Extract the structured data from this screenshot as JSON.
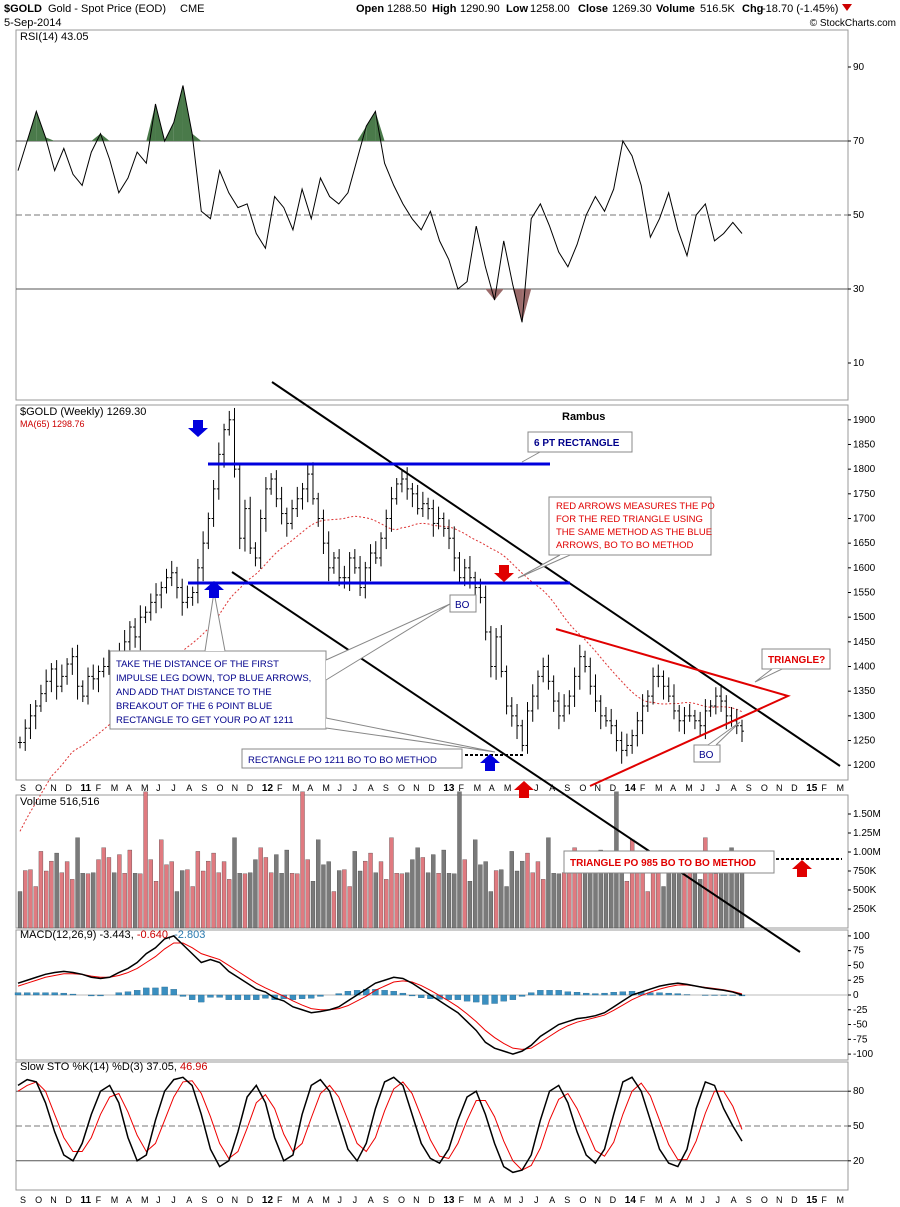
{
  "header": {
    "symbol": "$GOLD",
    "name": "Gold - Spot Price (EOD)",
    "exchange": "CME",
    "date": "5-Sep-2014",
    "open_label": "Open",
    "open": "1288.50",
    "high_label": "High",
    "high": "1290.90",
    "low_label": "Low",
    "low": "1258.00",
    "close_label": "Close",
    "close": "1269.30",
    "volume_label": "Volume",
    "volume": "516.5K",
    "chg_label": "Chg",
    "chg": "-18.70 (-1.45%)",
    "watermark": "© StockCharts.com"
  },
  "colors": {
    "up": "#e07a80",
    "down": "#7a7a7a",
    "blue": "#0000dd",
    "red": "#e00000",
    "macd_hist": "#3a8fc0",
    "rsi_high": "#4a7a4a",
    "rsi_low": "#9b6b6b"
  },
  "months": [
    "S",
    "O",
    "N",
    "D",
    "11",
    "F",
    "M",
    "A",
    "M",
    "J",
    "J",
    "A",
    "S",
    "O",
    "N",
    "D",
    "12",
    "F",
    "M",
    "A",
    "M",
    "J",
    "J",
    "A",
    "S",
    "O",
    "N",
    "D",
    "13",
    "F",
    "M",
    "A",
    "M",
    "J",
    "J",
    "A",
    "S",
    "O",
    "N",
    "D",
    "14",
    "F",
    "M",
    "A",
    "M",
    "J",
    "J",
    "A",
    "S",
    "O",
    "N",
    "D",
    "15",
    "F",
    "M"
  ],
  "chart_data": [
    {
      "type": "line",
      "panel": "rsi",
      "legend": "RSI(14) 43.05",
      "ylim": [
        0,
        100
      ],
      "ticks": [
        "90",
        "70",
        "50",
        "30",
        "10"
      ],
      "tick_values": [
        90,
        70,
        50,
        30,
        10
      ],
      "levels": [
        70,
        50,
        30
      ],
      "values": [
        62,
        70,
        78,
        71,
        62,
        68,
        61,
        58,
        67,
        72,
        65,
        56,
        60,
        67,
        64,
        80,
        70,
        75,
        85,
        72,
        51,
        49,
        62,
        56,
        52,
        53,
        45,
        41,
        55,
        52,
        46,
        57,
        49,
        60,
        55,
        53,
        56,
        65,
        74,
        78,
        64,
        58,
        53,
        49,
        46,
        51,
        43,
        38,
        30,
        32,
        47,
        36,
        27,
        43,
        31,
        21,
        49,
        53,
        47,
        40,
        36,
        42,
        50,
        55,
        51,
        57,
        70,
        66,
        58,
        44,
        49,
        56,
        46,
        39,
        50,
        53,
        43,
        45,
        48,
        45
      ],
      "x_start": "2010-09-03",
      "week_step": 1
    },
    {
      "type": "ohlc",
      "panel": "price",
      "legend": "$GOLD (Weekly) 1269.30",
      "ma_legend": "MA(65) 1298.76",
      "ylim": [
        1170,
        1930
      ],
      "ticks": [
        "1900",
        "1850",
        "1800",
        "1750",
        "1700",
        "1650",
        "1600",
        "1550",
        "1500",
        "1450",
        "1400",
        "1350",
        "1300",
        "1250",
        "1200"
      ],
      "tick_values": [
        1900,
        1850,
        1800,
        1750,
        1700,
        1650,
        1600,
        1550,
        1500,
        1450,
        1400,
        1350,
        1300,
        1250,
        1200
      ],
      "closes": [
        1246,
        1275,
        1300,
        1320,
        1345,
        1370,
        1395,
        1360,
        1380,
        1405,
        1420,
        1360,
        1340,
        1380,
        1375,
        1390,
        1400,
        1410,
        1405,
        1430,
        1450,
        1480,
        1460,
        1500,
        1510,
        1530,
        1545,
        1560,
        1580,
        1590,
        1560,
        1530,
        1540,
        1550,
        1600,
        1650,
        1700,
        1760,
        1830,
        1880,
        1900,
        1800,
        1660,
        1720,
        1640,
        1620,
        1700,
        1760,
        1780,
        1740,
        1710,
        1690,
        1720,
        1740,
        1760,
        1790,
        1740,
        1700,
        1650,
        1600,
        1620,
        1580,
        1580,
        1620,
        1600,
        1560,
        1600,
        1630,
        1620,
        1660,
        1700,
        1740,
        1770,
        1780,
        1760,
        1750,
        1720,
        1730,
        1720,
        1690,
        1700,
        1680,
        1660,
        1620,
        1580,
        1600,
        1580,
        1560,
        1540,
        1470,
        1400,
        1460,
        1390,
        1320,
        1300,
        1280,
        1240,
        1310,
        1340,
        1380,
        1400,
        1370,
        1330,
        1300,
        1320,
        1340,
        1380,
        1420,
        1400,
        1360,
        1330,
        1300,
        1290,
        1280,
        1250,
        1230,
        1240,
        1260,
        1290,
        1320,
        1340,
        1380,
        1380,
        1360,
        1340,
        1310,
        1290,
        1300,
        1300,
        1290,
        1280,
        1310,
        1320,
        1340,
        1330,
        1300,
        1290,
        1280,
        1269
      ],
      "x_start": "2010-09-03",
      "week_step": 1
    },
    {
      "type": "bar",
      "panel": "volume",
      "legend": "Volume 516,516",
      "ticks": [
        "1.50M",
        "1.25M",
        "1.00M",
        "750K",
        "500K",
        "250K"
      ],
      "tick_values": [
        1500000,
        1250000,
        1000000,
        750000,
        500000,
        250000
      ],
      "ylim": [
        0,
        1750000
      ],
      "pattern": [
        600000,
        700000,
        800000,
        650000,
        900000,
        750000,
        1000000,
        850000,
        700000,
        950000,
        800000,
        1100000,
        750000,
        850000,
        650000,
        900000,
        1200000,
        800000,
        700000,
        1050000,
        900000,
        950000,
        750000,
        850000,
        1600000,
        900000,
        700000,
        1000000,
        800000,
        950000
      ]
    },
    {
      "type": "line",
      "panel": "macd",
      "legend_prefix": "MACD(12,26,9)",
      "macd_value": "-3.443",
      "signal_value": "-0.640",
      "hist_value": "-2.803",
      "ticks": [
        "100",
        "75",
        "50",
        "25",
        "0",
        "-25",
        "-50",
        "-75",
        "-100"
      ],
      "tick_values": [
        100,
        75,
        50,
        25,
        0,
        -25,
        -50,
        -75,
        -100
      ],
      "ylim": [
        -110,
        110
      ],
      "macd": [
        20,
        25,
        30,
        35,
        38,
        40,
        38,
        35,
        30,
        28,
        30,
        38,
        45,
        55,
        70,
        80,
        95,
        100,
        85,
        70,
        55,
        60,
        55,
        40,
        30,
        20,
        10,
        5,
        -5,
        -10,
        -20,
        -25,
        -30,
        -28,
        -25,
        -20,
        -10,
        0,
        10,
        20,
        25,
        30,
        28,
        20,
        10,
        0,
        -10,
        -20,
        -30,
        -45,
        -60,
        -80,
        -90,
        -95,
        -100,
        -95,
        -85,
        -70,
        -60,
        -50,
        -45,
        -40,
        -38,
        -35,
        -30,
        -20,
        -10,
        0,
        5,
        10,
        15,
        18,
        20,
        18,
        15,
        12,
        10,
        8,
        5,
        0
      ],
      "signal": [
        15,
        20,
        25,
        30,
        33,
        36,
        36,
        35,
        32,
        30,
        30,
        33,
        38,
        45,
        55,
        65,
        78,
        88,
        88,
        80,
        70,
        65,
        60,
        50,
        40,
        30,
        20,
        12,
        5,
        -2,
        -10,
        -17,
        -23,
        -25,
        -25,
        -23,
        -18,
        -10,
        -2,
        8,
        15,
        22,
        24,
        22,
        16,
        8,
        -1,
        -10,
        -20,
        -32,
        -45,
        -60,
        -72,
        -82,
        -90,
        -92,
        -90,
        -80,
        -70,
        -60,
        -52,
        -46,
        -42,
        -38,
        -34,
        -26,
        -17,
        -8,
        -1,
        5,
        10,
        14,
        17,
        17,
        15,
        13,
        11,
        9,
        6,
        2
      ]
    },
    {
      "type": "line",
      "panel": "sto",
      "legend_prefix": "Slow STO %K(14) %D(3)",
      "k_value": "37.05",
      "d_value": "46.96",
      "ticks": [
        "80",
        "50",
        "20"
      ],
      "tick_values": [
        80,
        50,
        20
      ],
      "levels": [
        80,
        50,
        20
      ],
      "ylim": [
        0,
        100
      ],
      "k": [
        85,
        90,
        88,
        70,
        45,
        25,
        20,
        35,
        60,
        80,
        85,
        70,
        40,
        20,
        25,
        55,
        80,
        90,
        92,
        85,
        60,
        30,
        15,
        20,
        45,
        75,
        85,
        70,
        40,
        20,
        25,
        60,
        85,
        90,
        80,
        55,
        30,
        20,
        35,
        65,
        88,
        92,
        85,
        60,
        35,
        22,
        18,
        30,
        55,
        75,
        80,
        60,
        35,
        15,
        10,
        12,
        25,
        55,
        80,
        85,
        70,
        45,
        25,
        18,
        30,
        60,
        88,
        92,
        80,
        55,
        30,
        18,
        15,
        30,
        65,
        88,
        85,
        65,
        50,
        37
      ],
      "d": [
        80,
        85,
        88,
        80,
        60,
        40,
        28,
        28,
        40,
        60,
        75,
        78,
        62,
        42,
        28,
        35,
        55,
        75,
        88,
        89,
        78,
        58,
        35,
        22,
        28,
        48,
        70,
        77,
        65,
        43,
        28,
        35,
        57,
        78,
        85,
        75,
        55,
        35,
        28,
        40,
        63,
        82,
        88,
        78,
        58,
        38,
        24,
        22,
        35,
        55,
        72,
        72,
        58,
        37,
        20,
        12,
        16,
        31,
        55,
        73,
        78,
        65,
        47,
        29,
        24,
        36,
        60,
        80,
        87,
        76,
        55,
        34,
        21,
        21,
        37,
        61,
        80,
        80,
        67,
        47
      ]
    }
  ],
  "annotations": {
    "rambus": "Rambus",
    "six_pt_rect": "6 PT RECTANGLE",
    "red_arrows_note": [
      "RED ARROWS MEASURES THE PO",
      "FOR THE RED TRIANGLE USING",
      "THE SAME METHOD AS THE BLUE",
      "ARROWS, BO TO BO METHOD"
    ],
    "bo1": "BO",
    "bo2": "BO",
    "triangle": "TRIANGLE?",
    "distance_note": [
      "TAKE THE DISTANCE OF THE FIRST",
      "IMPULSE LEG DOWN, TOP BLUE ARROWS,",
      "AND ADD THAT DISTANCE TO THE",
      "BREAKOUT OF THE 6 POINT BLUE",
      "RECTANGLE TO GET YOUR PO AT 1211"
    ],
    "rect_po": "RECTANGLE PO 1211 BO TO BO METHOD",
    "tri_po": "TRIANGLE PO 985 BO TO BO METHOD"
  }
}
